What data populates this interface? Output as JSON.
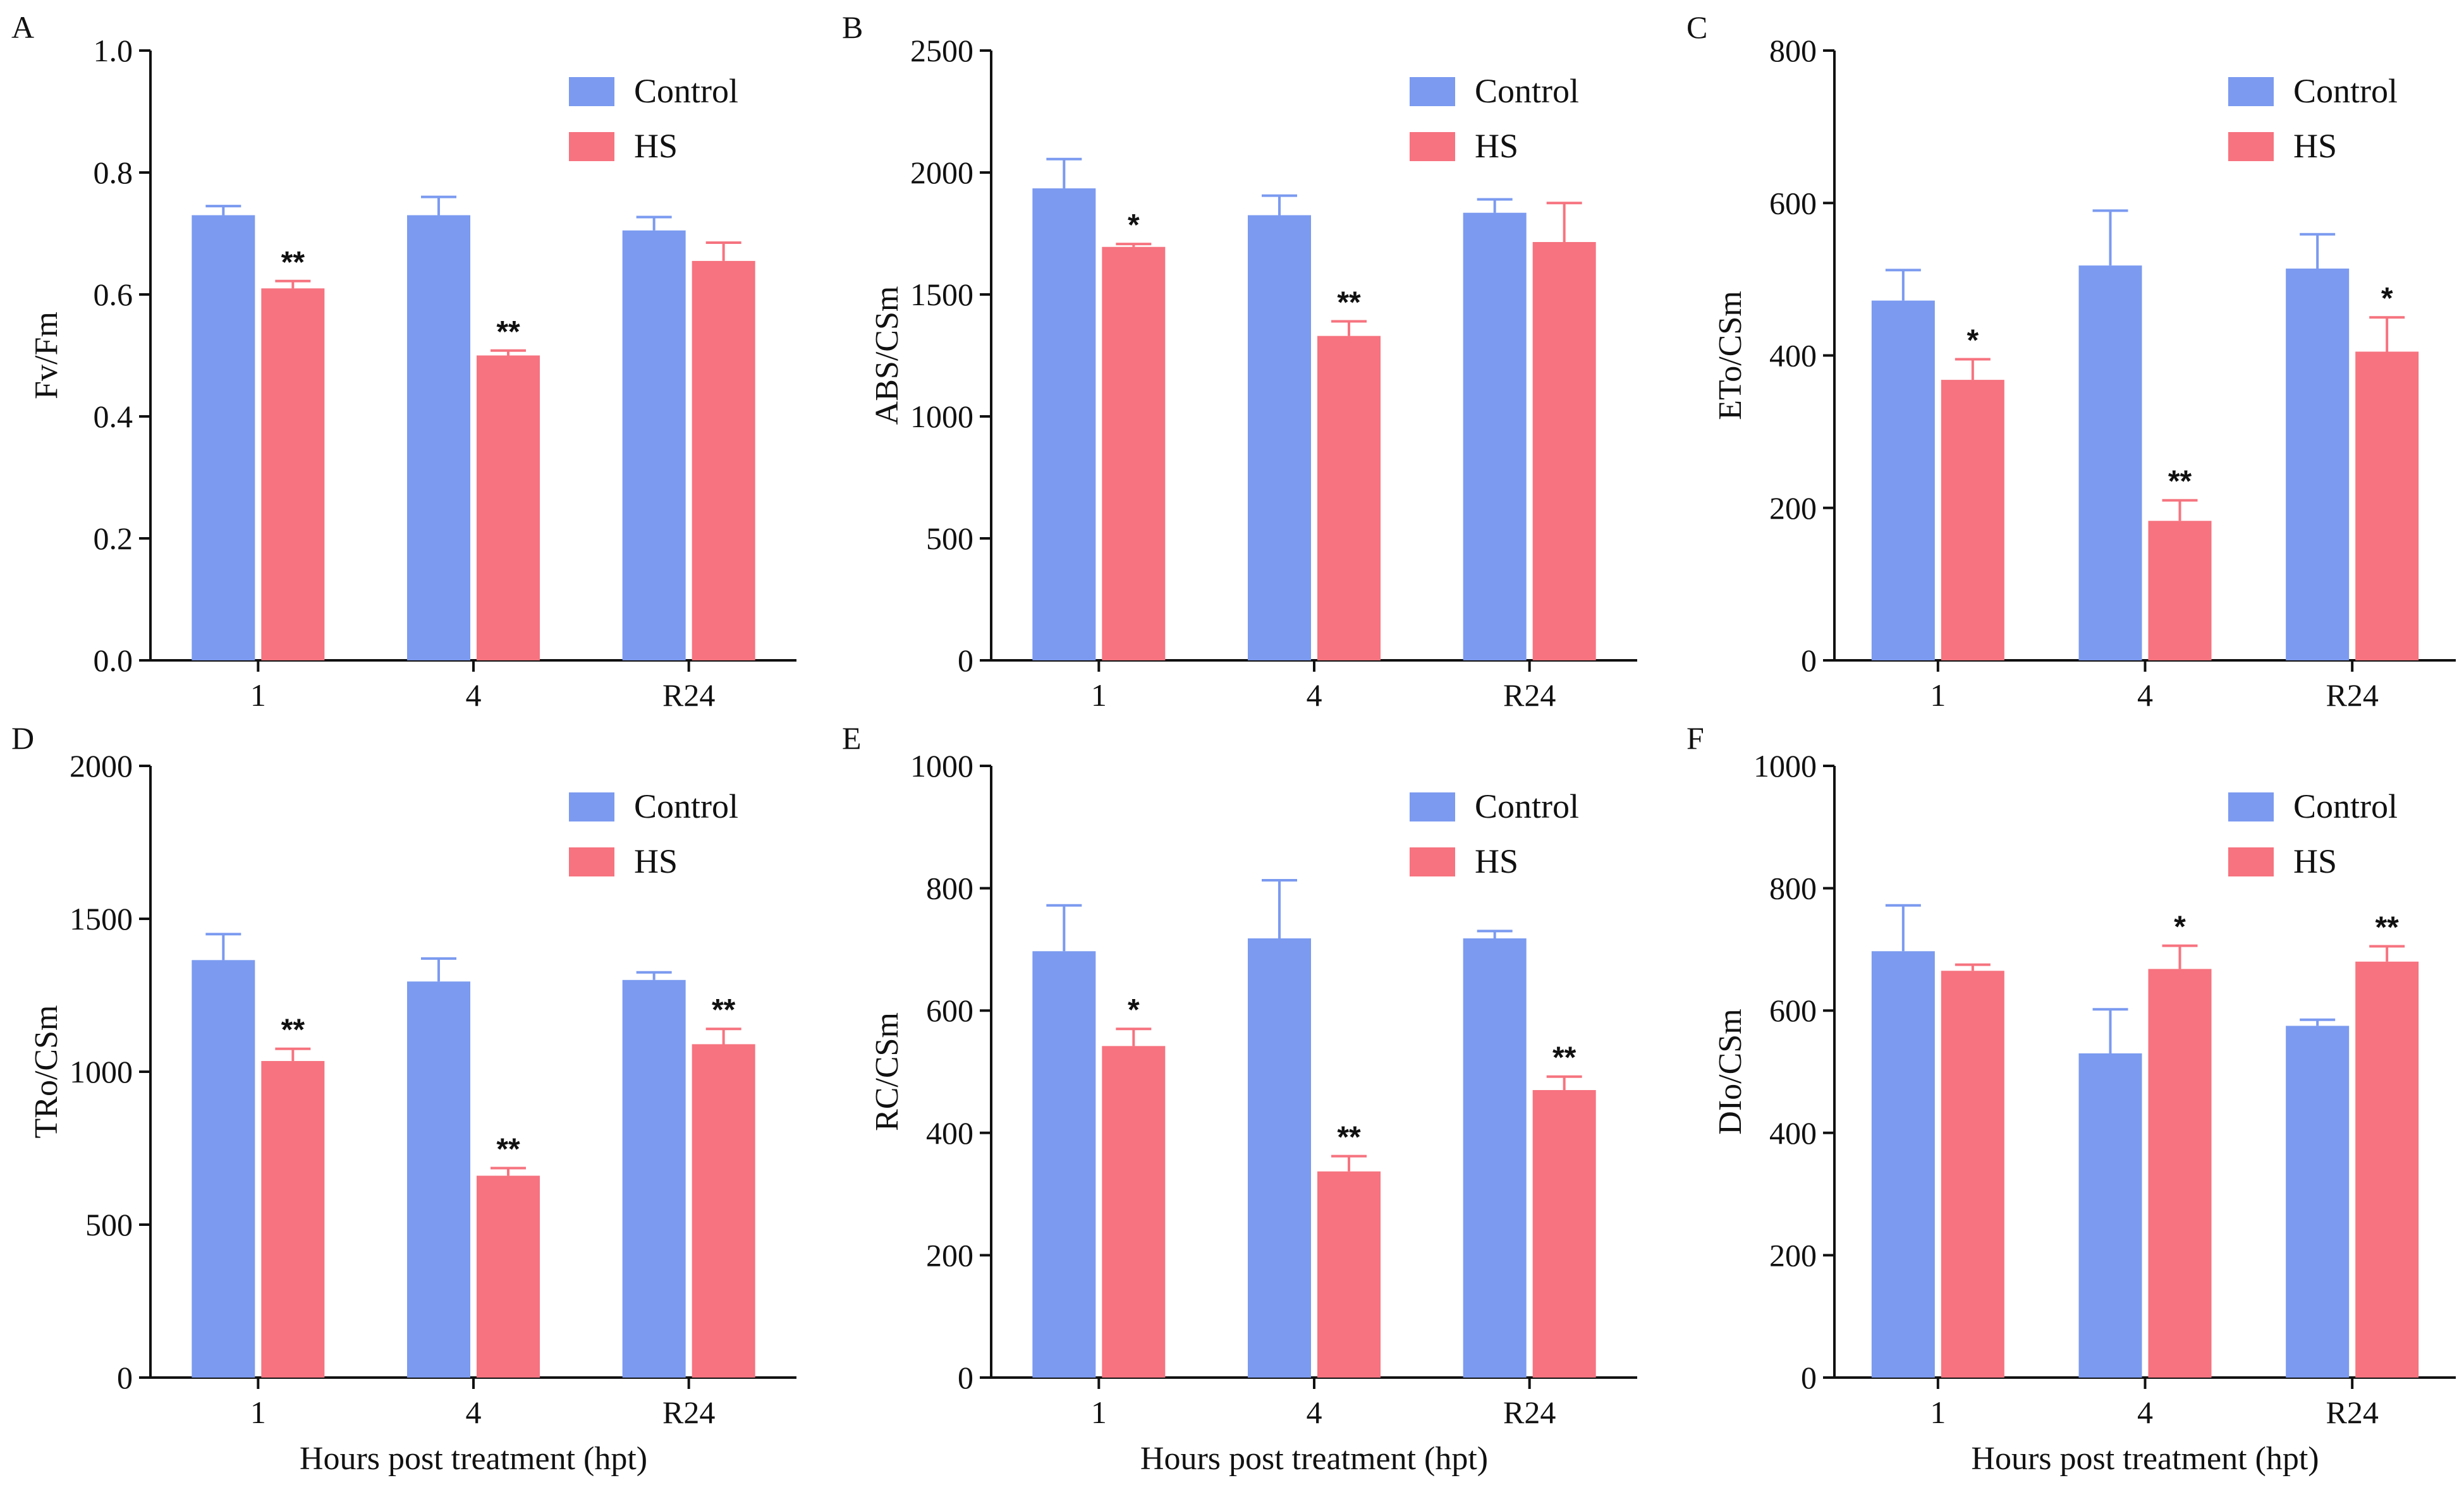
{
  "colors": {
    "control": "#7b9af0",
    "hs": "#f6737f",
    "axis": "#111111"
  },
  "legend": {
    "control": "Control",
    "hs": "HS"
  },
  "chart_data": [
    {
      "type": "bar",
      "panel": "A",
      "ylabel": "Fv/Fm",
      "xlabel": "",
      "categories": [
        "1",
        "4",
        "R24"
      ],
      "ylim": [
        0,
        1.0
      ],
      "yticks": [
        "0.0",
        "0.2",
        "0.4",
        "0.6",
        "0.8",
        "1.0"
      ],
      "legend_position": "top-right",
      "series": [
        {
          "name": "Control",
          "values": [
            0.73,
            0.73,
            0.705
          ],
          "errors": [
            0.015,
            0.03,
            0.022
          ]
        },
        {
          "name": "HS",
          "values": [
            0.61,
            0.5,
            0.655
          ],
          "errors": [
            0.012,
            0.008,
            0.03
          ],
          "significance": [
            "**",
            "**",
            ""
          ]
        }
      ]
    },
    {
      "type": "bar",
      "panel": "B",
      "ylabel": "ABS/CSm",
      "xlabel": "",
      "categories": [
        "1",
        "4",
        "R24"
      ],
      "ylim": [
        0,
        2500
      ],
      "yticks": [
        "0",
        "500",
        "1000",
        "1500",
        "2000",
        "2500"
      ],
      "legend_position": "top-right",
      "series": [
        {
          "name": "Control",
          "values": [
            1935,
            1825,
            1835
          ],
          "errors": [
            120,
            80,
            55
          ]
        },
        {
          "name": "HS",
          "values": [
            1695,
            1330,
            1715
          ],
          "errors": [
            12,
            60,
            160
          ],
          "significance": [
            "*",
            "**",
            ""
          ]
        }
      ]
    },
    {
      "type": "bar",
      "panel": "C",
      "ylabel": "ETo/CSm",
      "xlabel": "",
      "categories": [
        "1",
        "4",
        "R24"
      ],
      "ylim": [
        0,
        800
      ],
      "yticks": [
        "0",
        "200",
        "400",
        "600",
        "800"
      ],
      "legend_position": "top-right",
      "series": [
        {
          "name": "Control",
          "values": [
            472,
            518,
            514
          ],
          "errors": [
            40,
            72,
            45
          ]
        },
        {
          "name": "HS",
          "values": [
            368,
            183,
            405
          ],
          "errors": [
            27,
            27,
            45
          ],
          "significance": [
            "*",
            "**",
            "*"
          ]
        }
      ]
    },
    {
      "type": "bar",
      "panel": "D",
      "ylabel": "TRo/CSm",
      "xlabel": "Hours post treatment (hpt)",
      "categories": [
        "1",
        "4",
        "R24"
      ],
      "ylim": [
        0,
        2000
      ],
      "yticks": [
        "0",
        "500",
        "1000",
        "1500",
        "2000"
      ],
      "legend_position": "top-right",
      "series": [
        {
          "name": "Control",
          "values": [
            1365,
            1295,
            1300
          ],
          "errors": [
            85,
            75,
            25
          ]
        },
        {
          "name": "HS",
          "values": [
            1035,
            660,
            1090
          ],
          "errors": [
            40,
            25,
            50
          ],
          "significance": [
            "**",
            "**",
            "**"
          ]
        }
      ]
    },
    {
      "type": "bar",
      "panel": "E",
      "ylabel": "RC/CSm",
      "xlabel": "Hours post treatment (hpt)",
      "categories": [
        "1",
        "4",
        "R24"
      ],
      "ylim": [
        0,
        1000
      ],
      "yticks": [
        "0",
        "200",
        "400",
        "600",
        "800",
        "1000"
      ],
      "legend_position": "top-right",
      "series": [
        {
          "name": "Control",
          "values": [
            697,
            718,
            718
          ],
          "errors": [
            75,
            95,
            12
          ]
        },
        {
          "name": "HS",
          "values": [
            542,
            337,
            470
          ],
          "errors": [
            28,
            25,
            22
          ],
          "significance": [
            "*",
            "**",
            "**"
          ]
        }
      ]
    },
    {
      "type": "bar",
      "panel": "F",
      "ylabel": "DIo/CSm",
      "xlabel": "Hours post treatment (hpt)",
      "categories": [
        "1",
        "4",
        "R24"
      ],
      "ylim": [
        0,
        1000
      ],
      "yticks": [
        "0",
        "200",
        "400",
        "600",
        "800",
        "1000"
      ],
      "legend_position": "top-right",
      "series": [
        {
          "name": "Control",
          "values": [
            697,
            530,
            575
          ],
          "errors": [
            75,
            72,
            10
          ]
        },
        {
          "name": "HS",
          "values": [
            665,
            668,
            680
          ],
          "errors": [
            10,
            38,
            25
          ],
          "significance": [
            "",
            "*",
            "**"
          ]
        }
      ]
    }
  ]
}
